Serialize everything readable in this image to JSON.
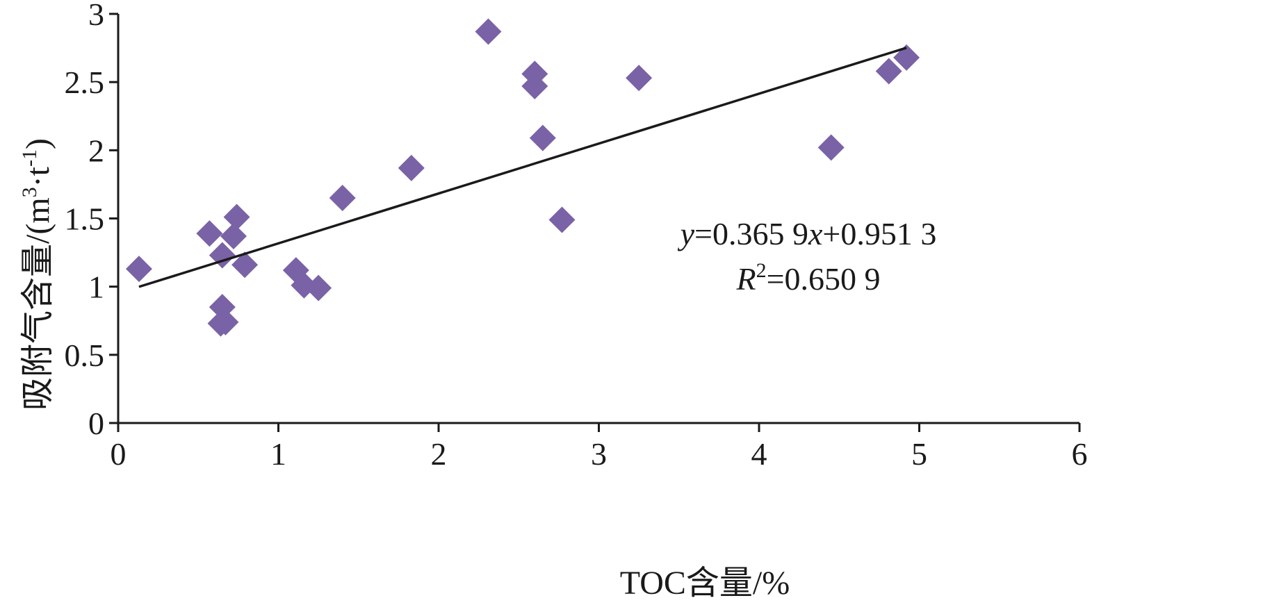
{
  "chart_data": {
    "type": "scatter",
    "title": "",
    "xlabel": "TOC含量/%",
    "ylabel": {
      "main": "吸附气含量/(m",
      "sup1": "3",
      "mid": "·t",
      "sup2": "-1",
      "end": ")"
    },
    "xlim": [
      0,
      6
    ],
    "ylim": [
      0,
      3
    ],
    "xticks": [
      "0",
      "1",
      "2",
      "3",
      "4",
      "5",
      "6"
    ],
    "yticks": [
      "0",
      "0.5",
      "1",
      "1.5",
      "2",
      "2.5",
      "3"
    ],
    "marker_color": "#7a62a6",
    "line_color": "#1a1a1a",
    "grid": false,
    "legend": "none",
    "series": [
      {
        "points": [
          {
            "x": 0.13,
            "y": 1.13
          },
          {
            "x": 0.57,
            "y": 1.39
          },
          {
            "x": 0.65,
            "y": 1.23
          },
          {
            "x": 0.72,
            "y": 1.37
          },
          {
            "x": 0.74,
            "y": 1.51
          },
          {
            "x": 0.79,
            "y": 1.16
          },
          {
            "x": 0.65,
            "y": 0.85
          },
          {
            "x": 0.64,
            "y": 0.73
          },
          {
            "x": 0.67,
            "y": 0.74
          },
          {
            "x": 1.11,
            "y": 1.12
          },
          {
            "x": 1.16,
            "y": 1.01
          },
          {
            "x": 1.25,
            "y": 0.99
          },
          {
            "x": 1.4,
            "y": 1.65
          },
          {
            "x": 1.83,
            "y": 1.87
          },
          {
            "x": 2.31,
            "y": 2.87
          },
          {
            "x": 2.6,
            "y": 2.56
          },
          {
            "x": 2.6,
            "y": 2.47
          },
          {
            "x": 2.65,
            "y": 2.09
          },
          {
            "x": 2.77,
            "y": 1.49
          },
          {
            "x": 3.25,
            "y": 2.53
          },
          {
            "x": 4.45,
            "y": 2.02
          },
          {
            "x": 4.81,
            "y": 2.58
          },
          {
            "x": 4.92,
            "y": 2.68
          }
        ]
      }
    ],
    "trendline": {
      "slope": 0.3659,
      "intercept": 0.9513,
      "x_range": [
        0.13,
        4.92
      ]
    },
    "annotation": {
      "eq_y": "y",
      "eq_mid": "=0.365 9",
      "eq_x": "x",
      "eq_end": "+0.951 3",
      "r2_r": "R",
      "r2_sup": "2",
      "r2_end": "=0.650 9"
    }
  }
}
